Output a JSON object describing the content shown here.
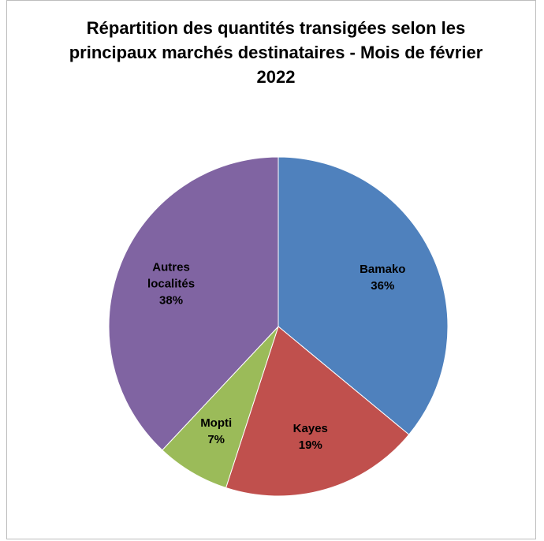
{
  "chart_data": {
    "type": "pie",
    "title": "Répartition des quantités transigées selon les principaux marchés destinataires - Mois de février 2022",
    "categories": [
      "Bamako",
      "Kayes",
      "Mopti",
      "Autres localités"
    ],
    "values": [
      36,
      19,
      7,
      38
    ],
    "value_labels": [
      "36%",
      "19%",
      "7%",
      "38%"
    ],
    "colors": [
      "#4f81bd",
      "#c0504d",
      "#9bbb59",
      "#8064a2"
    ]
  }
}
